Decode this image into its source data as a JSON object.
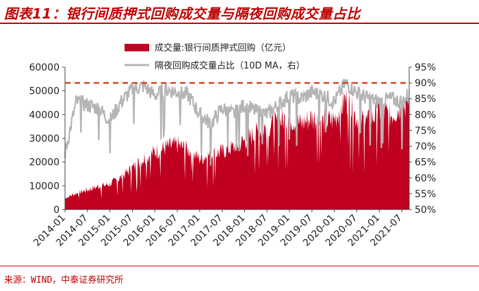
{
  "header": {
    "title": "图表11：银行间质押式回购成交量与隔夜回购成交量占比"
  },
  "footer": {
    "source": "来源：WIND，中泰证券研究所"
  },
  "chart_data": {
    "type": "area+line",
    "title": "",
    "xlabel": "",
    "ylabel_left": "",
    "ylabel_right": "",
    "legend_position": "top",
    "grid": false,
    "x_ticks": [
      "2014-01",
      "2014-07",
      "2015-01",
      "2015-07",
      "2016-01",
      "2016-07",
      "2017-01",
      "2017-07",
      "2018-01",
      "2018-07",
      "2019-01",
      "2019-07",
      "2020-01",
      "2020-07",
      "2021-01",
      "2021-07"
    ],
    "y_left": {
      "range": [
        0,
        60000
      ],
      "ticks": [
        "0",
        "10000",
        "20000",
        "30000",
        "40000",
        "50000",
        "60000"
      ]
    },
    "y_right": {
      "range": [
        0.5,
        0.95
      ],
      "ticks": [
        "50%",
        "55%",
        "60%",
        "65%",
        "70%",
        "75%",
        "80%",
        "85%",
        "90%",
        "95%"
      ]
    },
    "reference_line": {
      "axis": "right",
      "value": 0.9,
      "color": "#d9411e",
      "style": "dashed"
    },
    "colors": {
      "volume": "#c00020",
      "share": "#b4b4b4",
      "reference": "#d9411e"
    },
    "series": [
      {
        "name": "成交量:银行间质押式回购（亿元）",
        "kind": "area",
        "axis": "left",
        "x": [
          "2014-01",
          "2014-04",
          "2014-07",
          "2014-10",
          "2015-01",
          "2015-04",
          "2015-07",
          "2015-10",
          "2016-01",
          "2016-04",
          "2016-07",
          "2016-10",
          "2017-01",
          "2017-04",
          "2017-07",
          "2017-10",
          "2018-01",
          "2018-04",
          "2018-07",
          "2018-10",
          "2019-01",
          "2019-04",
          "2019-07",
          "2019-10",
          "2020-01",
          "2020-04",
          "2020-07",
          "2020-10",
          "2021-01",
          "2021-04",
          "2021-07",
          "2021-09"
        ],
        "values": [
          5000,
          7000,
          8500,
          10000,
          11000,
          14000,
          18000,
          22000,
          25000,
          27000,
          28000,
          26000,
          22000,
          24000,
          25000,
          27000,
          30000,
          33000,
          36000,
          38000,
          40000,
          37000,
          40000,
          38000,
          39000,
          48000,
          40000,
          38000,
          43000,
          41000,
          45000,
          47000
        ]
      },
      {
        "name": "隔夜回购成交量占比（10D MA，右）",
        "kind": "line",
        "axis": "right",
        "x": [
          "2014-01",
          "2014-04",
          "2014-07",
          "2014-10",
          "2015-01",
          "2015-04",
          "2015-07",
          "2015-10",
          "2016-01",
          "2016-04",
          "2016-07",
          "2016-10",
          "2017-01",
          "2017-04",
          "2017-07",
          "2017-10",
          "2018-01",
          "2018-04",
          "2018-07",
          "2018-10",
          "2019-01",
          "2019-04",
          "2019-07",
          "2019-10",
          "2020-01",
          "2020-04",
          "2020-07",
          "2020-10",
          "2021-01",
          "2021-04",
          "2021-07",
          "2021-09"
        ],
        "values": [
          0.68,
          0.84,
          0.83,
          0.82,
          0.78,
          0.84,
          0.88,
          0.89,
          0.86,
          0.88,
          0.87,
          0.86,
          0.8,
          0.77,
          0.82,
          0.8,
          0.83,
          0.81,
          0.8,
          0.83,
          0.86,
          0.85,
          0.87,
          0.86,
          0.84,
          0.9,
          0.87,
          0.85,
          0.84,
          0.85,
          0.84,
          0.86
        ]
      }
    ]
  }
}
